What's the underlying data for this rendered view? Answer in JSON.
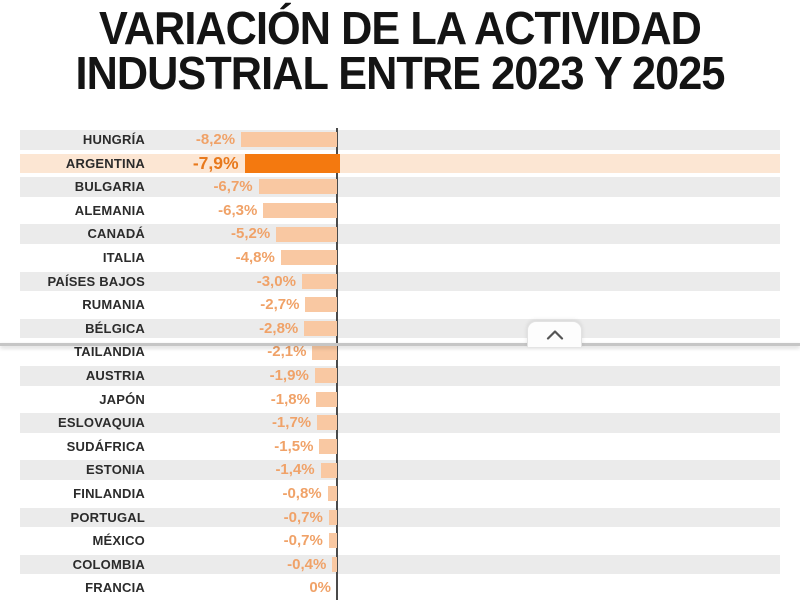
{
  "title": {
    "line1": "VARIACIÓN DE LA ACTIVIDAD",
    "line2": "INDUSTRIAL ENTRE 2023 Y 2025"
  },
  "chart_data": {
    "type": "bar",
    "orientation": "horizontal",
    "title": "VARIACIÓN DE LA ACTIVIDAD INDUSTRIAL ENTRE 2023 Y 2025",
    "unit": "%",
    "categories": [
      "HUNGRÍA",
      "ARGENTINA",
      "BULGARIA",
      "ALEMANIA",
      "CANADÁ",
      "ITALIA",
      "PAÍSES BAJOS",
      "RUMANIA",
      "BÉLGICA",
      "TAILANDIA",
      "AUSTRIA",
      "JAPÓN",
      "ESLOVAQUIA",
      "SUDÁFRICA",
      "ESTONIA",
      "FINLANDIA",
      "PORTUGAL",
      "MÉXICO",
      "COLOMBIA",
      "FRANCIA"
    ],
    "values": [
      -8.2,
      -7.9,
      -6.7,
      -6.3,
      -5.2,
      -4.8,
      -3.0,
      -2.7,
      -2.8,
      -2.1,
      -1.9,
      -1.8,
      -1.7,
      -1.5,
      -1.4,
      -0.8,
      -0.7,
      -0.7,
      -0.4,
      0
    ],
    "value_labels": [
      "-8,2%",
      "-7,9%",
      "-6,7%",
      "-6,3%",
      "-5,2%",
      "-4,8%",
      "-3,0%",
      "-2,7%",
      "-2,8%",
      "-2,1%",
      "-1,9%",
      "-1,8%",
      "-1,7%",
      "-1,5%",
      "-1,4%",
      "-0,8%",
      "-0,7%",
      "-0,7%",
      "-0,4%",
      "0%"
    ],
    "highlight_category": "ARGENTINA",
    "xlim": [
      -8.6,
      0
    ],
    "grid": false,
    "legend": false,
    "zero_axis_line": true
  },
  "overlay": {
    "collapse_tab": {
      "icon": "chevron-up"
    }
  },
  "colors": {
    "title_text": "#141414",
    "country_label": "#2b2b2b",
    "value_label": "#f0a268",
    "value_label_highlight": "#e8791c",
    "bar": "#f9c8a2",
    "bar_highlight": "#f4790f",
    "row_stripe": "#ebebeb",
    "row_highlight": "#fce6d3",
    "axis_line": "#4a4a4a",
    "divider_line": "#c6c6c6",
    "background": "#ffffff"
  }
}
